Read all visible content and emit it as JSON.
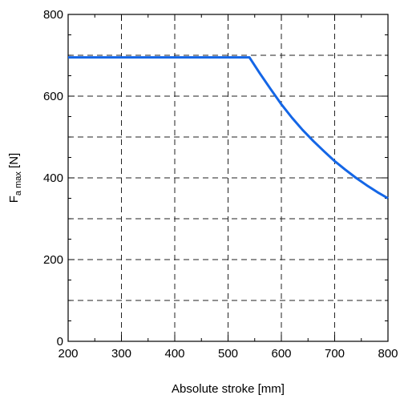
{
  "chart_data": {
    "type": "line",
    "title": "",
    "xlabel": "Absolute stroke [mm]",
    "ylabel_main": "F",
    "ylabel_sub": "a max",
    "ylabel_unit": " [N]",
    "xlim": [
      200,
      800
    ],
    "ylim": [
      0,
      800
    ],
    "x_ticks": [
      200,
      300,
      400,
      500,
      600,
      700,
      800
    ],
    "y_ticks": [
      0,
      200,
      400,
      600,
      800
    ],
    "x_grid": [
      300,
      400,
      500,
      600,
      700
    ],
    "y_grid": [
      100,
      200,
      300,
      400,
      500,
      600,
      700
    ],
    "x_minor_step": 50,
    "y_minor_step": 50,
    "grid": true,
    "series_color": "#1466e6",
    "series": [
      {
        "x": [
          200,
          540,
          560,
          580,
          600,
          620,
          640,
          660,
          680,
          700,
          720,
          740,
          760,
          780,
          800
        ],
        "values": [
          695,
          695,
          655,
          617,
          580,
          547,
          517,
          490,
          465,
          441,
          420,
          400,
          382,
          365,
          350
        ]
      }
    ]
  }
}
